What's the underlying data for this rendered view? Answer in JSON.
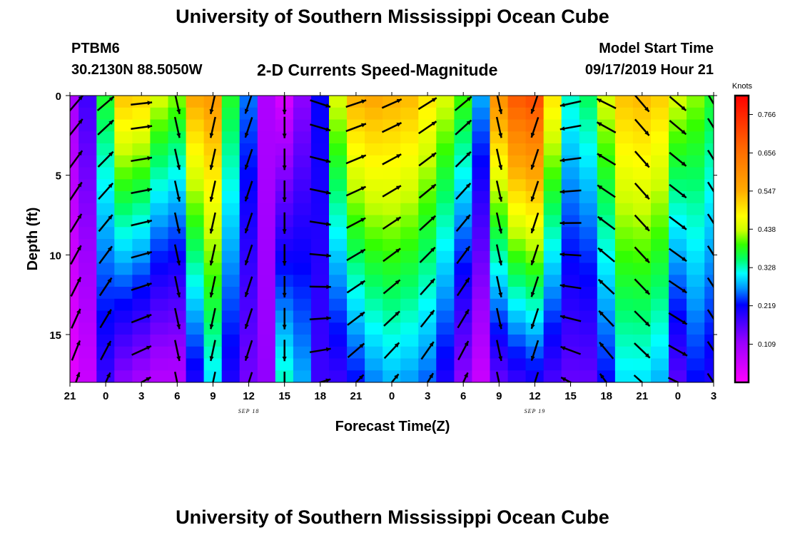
{
  "page": {
    "title_top": "University of Southern Mississippi Ocean Cube",
    "title_bottom": "University of Southern Mississippi Ocean Cube",
    "station_id": "PTBM6",
    "station_coords": "30.2130N 88.5050W",
    "plot_title": "2-D Currents Speed-Magnitude",
    "model_start_label": "Model Start Time",
    "model_start_value": "09/17/2019 Hour 21"
  },
  "chart_data": {
    "type": "heatmap",
    "title": "2-D Currents Speed-Magnitude",
    "xlabel": "Forecast Time(Z)",
    "ylabel": "Depth (ft)",
    "x_tick_labels": [
      "21",
      "0",
      "3",
      "6",
      "9",
      "12",
      "15",
      "18",
      "21",
      "0",
      "3",
      "6",
      "9",
      "12",
      "15",
      "18",
      "21",
      "0",
      "3"
    ],
    "x_tick_hours": [
      0,
      3,
      6,
      9,
      12,
      15,
      18,
      21,
      24,
      27,
      30,
      33,
      36,
      39,
      42,
      45,
      48,
      51,
      54
    ],
    "date_labels": [
      {
        "text": "SEP 18",
        "hour": 15
      },
      {
        "text": "SEP 19",
        "hour": 39
      }
    ],
    "xlim_hours": [
      0,
      54
    ],
    "y_ticks": [
      0,
      5,
      10,
      15
    ],
    "ylim": [
      0,
      18
    ],
    "y_inverted": true,
    "colorbar": {
      "label": "Knots",
      "ticks": [
        "0.766",
        "0.656",
        "0.547",
        "0.438",
        "0.328",
        "0.219",
        "0.109"
      ],
      "tick_values": [
        0.766,
        0.656,
        0.547,
        0.438,
        0.328,
        0.219,
        0.109
      ],
      "range": [
        0,
        0.82
      ]
    },
    "columns": [
      {
        "hour": 0,
        "surface": 0.1,
        "bottom": 0.03
      },
      {
        "hour": 1.5,
        "surface": 0.18,
        "bottom": 0.06
      },
      {
        "hour": 3,
        "surface": 0.38,
        "bottom": 0.18
      },
      {
        "hour": 4.5,
        "surface": 0.53,
        "bottom": 0.12
      },
      {
        "hour": 6,
        "surface": 0.52,
        "bottom": 0.1
      },
      {
        "hour": 7.5,
        "surface": 0.45,
        "bottom": 0.08
      },
      {
        "hour": 9,
        "surface": 0.42,
        "bottom": 0.08
      },
      {
        "hour": 10.5,
        "surface": 0.56,
        "bottom": 0.2
      },
      {
        "hour": 12,
        "surface": 0.58,
        "bottom": 0.3
      },
      {
        "hour": 13.5,
        "surface": 0.38,
        "bottom": 0.2
      },
      {
        "hour": 15,
        "surface": 0.26,
        "bottom": 0.14
      },
      {
        "hour": 16.5,
        "surface": 0.09,
        "bottom": 0.12
      },
      {
        "hour": 18,
        "surface": 0.04,
        "bottom": 0.33
      },
      {
        "hour": 19.5,
        "surface": 0.12,
        "bottom": 0.28
      },
      {
        "hour": 21,
        "surface": 0.22,
        "bottom": 0.18
      },
      {
        "hour": 22.5,
        "surface": 0.45,
        "bottom": 0.18
      },
      {
        "hour": 24,
        "surface": 0.55,
        "bottom": 0.22
      },
      {
        "hour": 25.5,
        "surface": 0.56,
        "bottom": 0.26
      },
      {
        "hour": 27,
        "surface": 0.55,
        "bottom": 0.28
      },
      {
        "hour": 28.5,
        "surface": 0.54,
        "bottom": 0.27
      },
      {
        "hour": 30,
        "surface": 0.5,
        "bottom": 0.25
      },
      {
        "hour": 31.5,
        "surface": 0.45,
        "bottom": 0.2
      },
      {
        "hour": 33,
        "surface": 0.4,
        "bottom": 0.12
      },
      {
        "hour": 34.5,
        "surface": 0.28,
        "bottom": 0.06
      },
      {
        "hour": 36,
        "surface": 0.6,
        "bottom": 0.15
      },
      {
        "hour": 37.5,
        "surface": 0.7,
        "bottom": 0.18
      },
      {
        "hour": 39,
        "surface": 0.72,
        "bottom": 0.2
      },
      {
        "hour": 40.5,
        "surface": 0.5,
        "bottom": 0.17
      },
      {
        "hour": 42,
        "surface": 0.33,
        "bottom": 0.15
      },
      {
        "hour": 43.5,
        "surface": 0.36,
        "bottom": 0.15
      },
      {
        "hour": 45,
        "surface": 0.45,
        "bottom": 0.22
      },
      {
        "hour": 46.5,
        "surface": 0.53,
        "bottom": 0.3
      },
      {
        "hour": 48,
        "surface": 0.54,
        "bottom": 0.3
      },
      {
        "hour": 49.5,
        "surface": 0.52,
        "bottom": 0.28
      },
      {
        "hour": 51,
        "surface": 0.45,
        "bottom": 0.16
      },
      {
        "hour": 52.5,
        "surface": 0.42,
        "bottom": 0.22
      },
      {
        "hour": 54,
        "surface": 0.38,
        "bottom": 0.2
      }
    ],
    "vectors": [
      {
        "hour": 0.5,
        "u": 0.6,
        "v": 0.7
      },
      {
        "hour": 3,
        "u": 0.7,
        "v": 0.6
      },
      {
        "hour": 6,
        "u": 0.9,
        "v": 0.1
      },
      {
        "hour": 9,
        "u": 0.2,
        "v": -0.9
      },
      {
        "hour": 12,
        "u": -0.2,
        "v": -0.9
      },
      {
        "hour": 15,
        "u": -0.3,
        "v": -0.9
      },
      {
        "hour": 18,
        "u": 0.0,
        "v": -1.0
      },
      {
        "hour": 21,
        "u": 0.9,
        "v": -0.3
      },
      {
        "hour": 24,
        "u": 0.9,
        "v": 0.3
      },
      {
        "hour": 27,
        "u": 0.9,
        "v": 0.4
      },
      {
        "hour": 30,
        "u": 0.8,
        "v": 0.5
      },
      {
        "hour": 33,
        "u": 0.6,
        "v": 0.5
      },
      {
        "hour": 36,
        "u": 0.2,
        "v": -0.9
      },
      {
        "hour": 39,
        "u": -0.3,
        "v": -0.9
      },
      {
        "hour": 42,
        "u": -0.9,
        "v": -0.2
      },
      {
        "hour": 45,
        "u": -0.8,
        "v": 0.4
      },
      {
        "hour": 48,
        "u": 0.6,
        "v": -0.7
      },
      {
        "hour": 51,
        "u": 0.7,
        "v": -0.6
      },
      {
        "hour": 54,
        "u": 0.5,
        "v": -0.8
      }
    ]
  }
}
